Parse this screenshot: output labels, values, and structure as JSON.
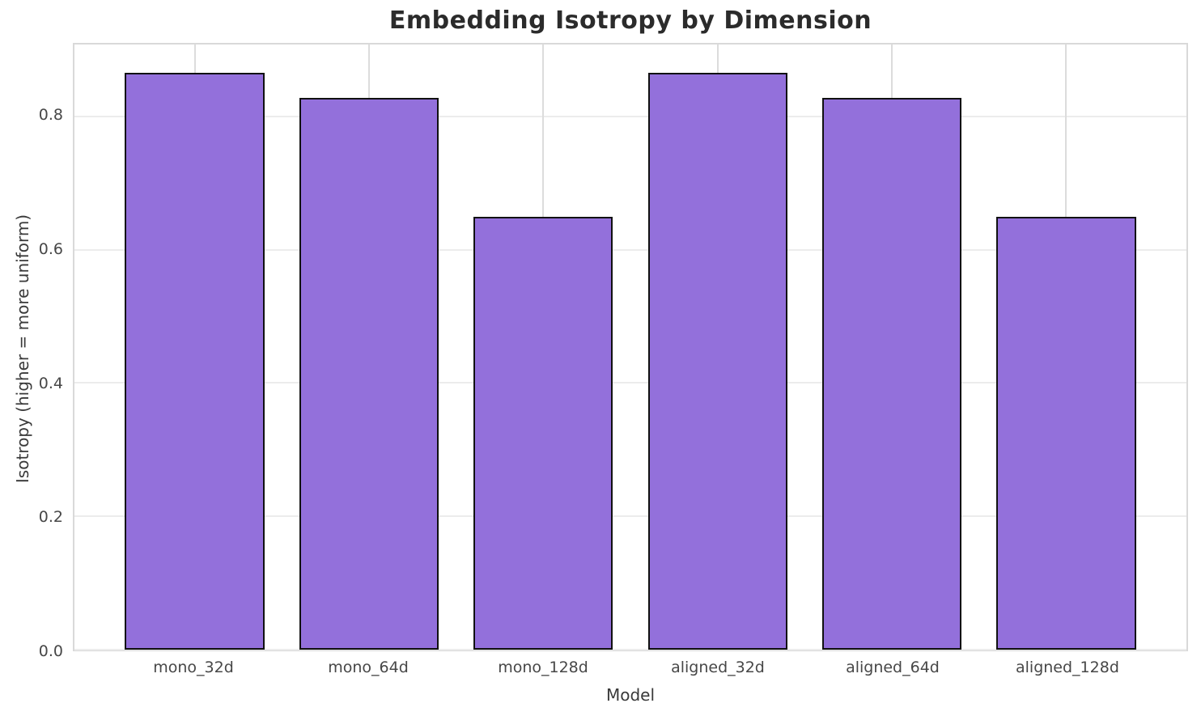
{
  "chart_data": {
    "type": "bar",
    "title": "Embedding Isotropy by Dimension",
    "xlabel": "Model",
    "ylabel": "Isotropy (higher = more uniform)",
    "categories": [
      "mono_32d",
      "mono_64d",
      "mono_128d",
      "aligned_32d",
      "aligned_64d",
      "aligned_128d"
    ],
    "values": [
      0.866,
      0.828,
      0.65,
      0.866,
      0.828,
      0.65
    ],
    "y_ticks": [
      0.0,
      0.2,
      0.4,
      0.6,
      0.8
    ],
    "ylim": [
      0,
      0.908
    ],
    "xlim": [
      -0.69,
      5.69
    ],
    "bar_width": 0.8,
    "grid": true,
    "legend": "none",
    "colors": {
      "bar_fill": "#9370DB",
      "bar_edge": "#111111",
      "grid_horizontal": "#ececec",
      "grid_vertical": "#dcdcdc",
      "spine": "#d9d9d9",
      "tick_text": "#474747",
      "label_text": "#3a3a3a",
      "title_text": "#2b2b2b"
    }
  }
}
